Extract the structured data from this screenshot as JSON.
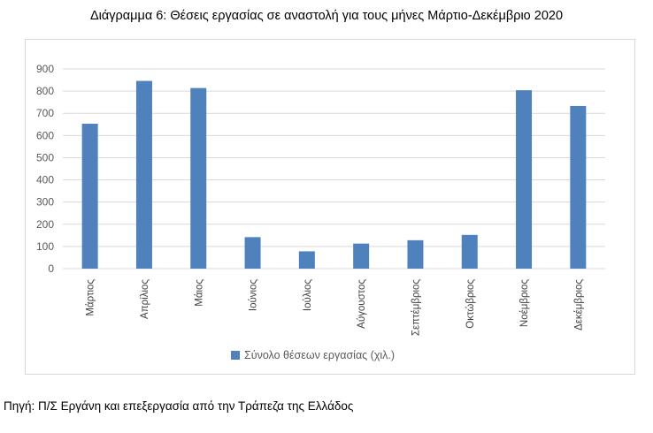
{
  "title": "Διάγραμμα 6: Θέσεις εργασίας σε αναστολή για τους μήνες Μάρτιο-Δεκέμβριο 2020",
  "source": "Πηγή: Π/Σ Εργάνη και επεξεργασία από την Τράπεζα της Ελλάδος",
  "chart_data": {
    "type": "bar",
    "categories": [
      "Μάρτιος",
      "Απρίλιος",
      "Μάιος",
      "Ιούνιος",
      "Ιούλιος",
      "Αύγουστος",
      "Σεπτέμβριος",
      "Οκτώβριος",
      "Νοέμβριος",
      "Δεκέμβριος"
    ],
    "series": [
      {
        "name": "Σύνολο θέσεων εργασίας (χιλ.)",
        "values": [
          653,
          846,
          814,
          142,
          78,
          113,
          128,
          152,
          804,
          733
        ]
      }
    ],
    "yticks": [
      "0",
      "100",
      "200",
      "300",
      "400",
      "500",
      "600",
      "700",
      "800",
      "900"
    ],
    "ylim": [
      0,
      900
    ],
    "xlabel": "",
    "ylabel": "",
    "grid": true,
    "legend_position": "bottom",
    "bar_color": "#4f81bd",
    "grid_color": "#d9d9d9"
  }
}
